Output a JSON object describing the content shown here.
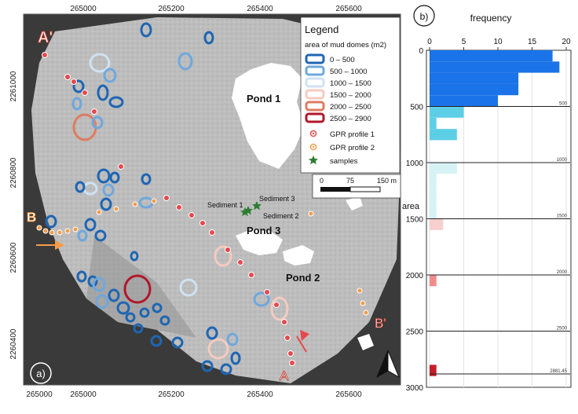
{
  "map": {
    "panel_label": "a)",
    "x_ticks": [
      "265000",
      "265200",
      "265400",
      "265600"
    ],
    "y_ticks": [
      "2261000",
      "2260800",
      "2260600",
      "2260400"
    ],
    "ponds": [
      "Pond 1",
      "Pond 3",
      "Pond 2"
    ],
    "samples": [
      "Sediment 1",
      "Sediment 3",
      "Sediment 2"
    ],
    "profile_ends": {
      "a_prime": "A'",
      "a": "A",
      "b": "B",
      "b_prime": "B'"
    },
    "scalebar": {
      "labels": [
        "0",
        "75",
        "150 m"
      ]
    },
    "legend": {
      "title": "Legend",
      "subtitle": "area of mud domes (m2)",
      "classes": [
        {
          "label": "0 – 500",
          "color": "#1f66b2"
        },
        {
          "label": "500 – 1000",
          "color": "#6fa8dc"
        },
        {
          "label": "1000 – 1500",
          "color": "#cfe2f3"
        },
        {
          "label": "1500 – 2000",
          "color": "#f4cbc0"
        },
        {
          "label": "2000 – 2500",
          "color": "#e07a5f"
        },
        {
          "label": "2500 – 2900",
          "color": "#b0172b"
        }
      ],
      "markers": [
        {
          "label": "GPR profile 1",
          "color": "#e5484d"
        },
        {
          "label": "GPR profile 2",
          "color": "#f39c4a"
        },
        {
          "label": "samples",
          "color": "#2e7d32"
        }
      ]
    }
  },
  "histogram": {
    "panel_label": "b)",
    "xlabel": "frequency",
    "ylabel": "area",
    "x_ticks": [
      "0",
      "5",
      "10",
      "15",
      "20"
    ],
    "y_ticks": [
      "0",
      "500",
      "1000",
      "1500",
      "2000",
      "2500",
      "3000"
    ],
    "threshold_labels": [
      "500",
      "1000",
      "1500",
      "2000",
      "2500",
      "2881.45"
    ]
  },
  "chart_data": {
    "type": "bar",
    "orientation": "horizontal",
    "title": "",
    "xlabel": "frequency",
    "ylabel": "area",
    "xlim": [
      0,
      20
    ],
    "ylim": [
      0,
      3000
    ],
    "bin_width": 100,
    "bins_start": [
      0,
      100,
      200,
      300,
      400,
      500,
      600,
      700,
      800,
      900,
      1000,
      1100,
      1200,
      1300,
      1400,
      1500,
      1600,
      1700,
      1800,
      1900,
      2000,
      2100,
      2200,
      2300,
      2400,
      2500,
      2600,
      2700,
      2800
    ],
    "values": [
      18,
      19,
      13,
      13,
      10,
      5,
      1,
      4,
      0,
      0,
      4,
      1,
      1,
      1,
      1,
      2,
      0,
      0,
      0,
      0,
      1,
      0,
      0,
      0,
      0,
      0,
      0,
      0,
      1
    ],
    "thresholds": [
      500,
      1000,
      1500,
      2000,
      2500,
      2881.45
    ],
    "colors": [
      "#1a73e8",
      "#5ccfe6",
      "#d6f2f5",
      "#f8cfcf",
      "#f28b8b",
      "#c41e2a"
    ]
  }
}
